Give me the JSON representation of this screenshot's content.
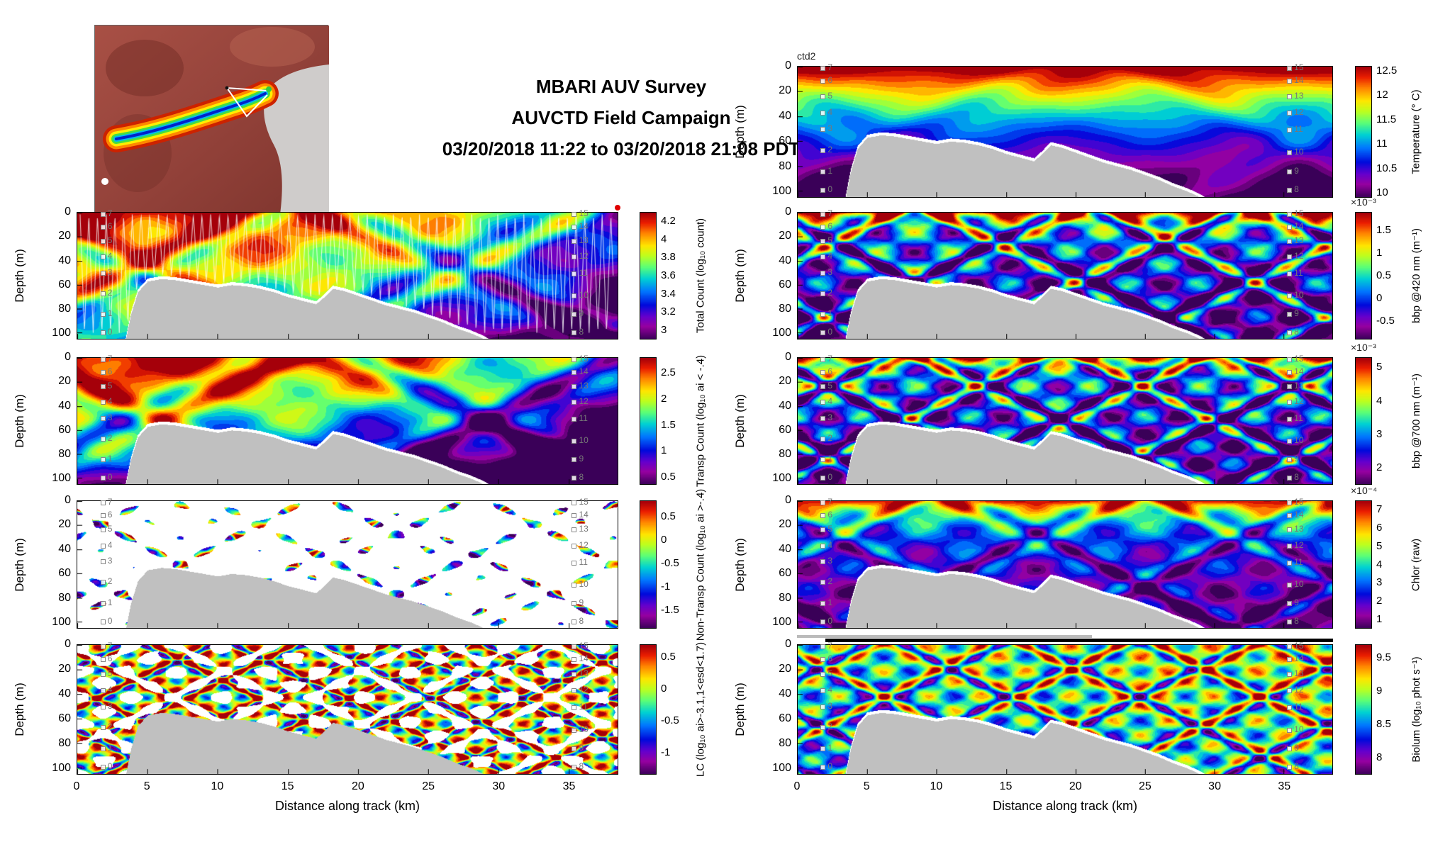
{
  "figure_title": {
    "line1": "MBARI AUV Survey",
    "line2": "AUVCTD Field Campaign",
    "line3": "03/20/2018 11:22 to 03/20/2018 21:08 PDT"
  },
  "map_inset": {
    "description": "Monterey Bay bathymetry overview map with AUV track and start marker"
  },
  "axes": {
    "xlabel": "Distance along track (km)",
    "ylabel": "Depth (m)",
    "xticks": [
      0,
      5,
      10,
      15,
      20,
      25,
      30,
      35
    ],
    "yticks": [
      0,
      20,
      40,
      60,
      80,
      100
    ],
    "x_range_km": [
      0,
      38.5
    ],
    "depth_range_m": [
      0,
      105
    ]
  },
  "annotations": {
    "ctd_label": "ctd2"
  },
  "waypoints": {
    "left_x_km": 1.8,
    "right_x_km": 35.3,
    "left": [
      {
        "label": "7",
        "depth_m": 1.5
      },
      {
        "label": "6",
        "depth_m": 12
      },
      {
        "label": "5",
        "depth_m": 24
      },
      {
        "label": "4",
        "depth_m": 37
      },
      {
        "label": "3",
        "depth_m": 50
      },
      {
        "label": "2",
        "depth_m": 67
      },
      {
        "label": "1",
        "depth_m": 84
      },
      {
        "label": "0",
        "depth_m": 99
      }
    ],
    "right": [
      {
        "label": "15",
        "depth_m": 1.5
      },
      {
        "label": "14",
        "depth_m": 12
      },
      {
        "label": "13",
        "depth_m": 24
      },
      {
        "label": "12",
        "depth_m": 37
      },
      {
        "label": "11",
        "depth_m": 51
      },
      {
        "label": "10",
        "depth_m": 69
      },
      {
        "label": "9",
        "depth_m": 84
      },
      {
        "label": "8",
        "depth_m": 99
      }
    ]
  },
  "chart_data": {
    "type": "heatmap",
    "title": "MBARI AUV Survey — AUVCTD Field Campaign section plots, 03/20/2018 11:22 to 03/20/2018 21:08 PDT",
    "x_axis": {
      "label": "Distance along track (km)",
      "range": [
        0,
        38.5
      ],
      "ticks": [
        0,
        5,
        10,
        15,
        20,
        25,
        30,
        35
      ]
    },
    "y_axis": {
      "label": "Depth (m)",
      "range": [
        0,
        105
      ],
      "ticks": [
        0,
        20,
        40,
        60,
        80,
        100
      ],
      "direction": "down"
    },
    "colormap_stops": [
      [
        0.0,
        [
          58,
          0,
          88
        ]
      ],
      [
        0.1,
        [
          150,
          0,
          160
        ]
      ],
      [
        0.18,
        [
          100,
          0,
          205
        ]
      ],
      [
        0.27,
        [
          0,
          10,
          220
        ]
      ],
      [
        0.38,
        [
          0,
          120,
          255
        ]
      ],
      [
        0.48,
        [
          0,
          210,
          210
        ]
      ],
      [
        0.57,
        [
          90,
          255,
          120
        ]
      ],
      [
        0.66,
        [
          190,
          255,
          30
        ]
      ],
      [
        0.74,
        [
          255,
          230,
          0
        ]
      ],
      [
        0.84,
        [
          255,
          130,
          0
        ]
      ],
      [
        0.92,
        [
          235,
          30,
          0
        ]
      ],
      [
        1.0,
        [
          165,
          0,
          10
        ]
      ]
    ],
    "bathymetry_profile": {
      "x_km": [
        0,
        3.0,
        3.4,
        3.8,
        4.3,
        5,
        6,
        7,
        8,
        9,
        10,
        11,
        12,
        13,
        14,
        15,
        16,
        17,
        17.6,
        18.2,
        19,
        20,
        21,
        22,
        23,
        24,
        25,
        26,
        27,
        28,
        28.8,
        29.6,
        31,
        38.5
      ],
      "seafloor_depth_m": [
        140,
        130,
        108,
        85,
        66,
        57,
        55,
        56,
        58,
        60,
        62,
        60,
        61,
        63,
        66,
        70,
        73,
        76,
        70,
        63,
        65,
        69,
        73,
        77,
        80,
        83,
        87,
        91,
        96,
        100,
        104,
        109,
        125,
        150
      ]
    },
    "panels": [
      {
        "id": "temperature",
        "column": "right",
        "row": 0,
        "colorbar_label": "Temperature (° C)",
        "colorbar_ticks": [
          10,
          10.5,
          11,
          11.5,
          12,
          12.5
        ],
        "value_range": [
          9.9,
          12.6
        ],
        "exponent": null,
        "annotation": "ctd2",
        "render": {
          "pattern": "field",
          "a0": 1.06,
          "au": 0,
          "au2": 0,
          "av": -1.9,
          "av2": 0.85,
          "band": 0,
          "band_m": 10,
          "an": 0.1,
          "nf": 2.4,
          "seed": 5
        }
      },
      {
        "id": "bbp420",
        "column": "right",
        "row": 1,
        "colorbar_label": "bbp @420 nm (m⁻¹)",
        "colorbar_ticks": [
          -0.5,
          0,
          0.5,
          1,
          1.5
        ],
        "value_range": [
          -0.9,
          1.9
        ],
        "exponent": "×10⁻³",
        "annotation": null,
        "render": {
          "pattern": "field",
          "a0": 0.42,
          "au": 0,
          "au2": 0,
          "av": -0.35,
          "av2": 0,
          "band": 0.55,
          "band_m": 7,
          "an": 0.5,
          "nf": 6,
          "seed": 6
        }
      },
      {
        "id": "bbp700",
        "column": "right",
        "row": 2,
        "colorbar_label": "bbp @700 nm (m⁻¹)",
        "colorbar_ticks": [
          2,
          3,
          4,
          5
        ],
        "value_range": [
          1.5,
          5.3
        ],
        "exponent": "×10⁻³",
        "annotation": null,
        "render": {
          "pattern": "field",
          "a0": 0.4,
          "au": 0,
          "au2": 0,
          "av": -0.3,
          "av2": 0,
          "band": 0.5,
          "band_m": 6,
          "an": 0.5,
          "nf": 6.5,
          "seed": 7
        }
      },
      {
        "id": "chlor",
        "column": "right",
        "row": 3,
        "colorbar_label": "Chlor (raw)",
        "colorbar_ticks": [
          1,
          2,
          3,
          4,
          5,
          6,
          7
        ],
        "value_range": [
          0.5,
          7.5
        ],
        "exponent": "×10⁻⁴",
        "annotation": null,
        "render": {
          "pattern": "field",
          "a0": 0.34,
          "au": 0,
          "au2": 0,
          "av": -0.3,
          "av2": 0,
          "band": 0.62,
          "band_m": 14,
          "an": 0.26,
          "nf": 5,
          "seed": 8
        }
      },
      {
        "id": "biolum",
        "column": "right",
        "row": 4,
        "colorbar_label": "Biolum (log₁₀ phot s⁻¹)",
        "colorbar_ticks": [
          8,
          8.5,
          9,
          9.5
        ],
        "value_range": [
          7.75,
          9.7
        ],
        "exponent": null,
        "annotation": null,
        "render": {
          "pattern": "field",
          "a0": 0.55,
          "au": 0.15,
          "au2": 0,
          "av": -0.2,
          "av2": 0,
          "band": 0,
          "band_m": 10,
          "an": 0.45,
          "nf": 8,
          "seed": 9,
          "topbar": true
        }
      },
      {
        "id": "total-count",
        "column": "left",
        "row": 1,
        "colorbar_label": "Total Count (log₁₀ count)",
        "colorbar_ticks": [
          3,
          3.2,
          3.4,
          3.6,
          3.8,
          4,
          4.2
        ],
        "value_range": [
          2.9,
          4.3
        ],
        "exponent": null,
        "annotation": null,
        "render": {
          "pattern": "field",
          "a0": 1.0,
          "au": 0.1,
          "au2": -0.75,
          "av": -0.55,
          "av2": 0,
          "band": 0,
          "band_m": 10,
          "an": 0.28,
          "nf": 3.2,
          "seed": 1,
          "track": true,
          "enddot": true
        }
      },
      {
        "id": "transp-count",
        "column": "left",
        "row": 2,
        "colorbar_label": "Transp Count (log₁₀ ai < -.4)",
        "colorbar_ticks": [
          0.5,
          1,
          1.5,
          2,
          2.5
        ],
        "value_range": [
          0.35,
          2.8
        ],
        "exponent": null,
        "annotation": null,
        "render": {
          "pattern": "field",
          "a0": 1.05,
          "au": 0.05,
          "au2": -0.75,
          "av": -0.9,
          "av2": 0,
          "band": 0,
          "band_m": 10,
          "an": 0.3,
          "nf": 3.0,
          "seed": 2
        }
      },
      {
        "id": "non-transp-count",
        "column": "left",
        "row": 3,
        "colorbar_label": "Non-Transp Count (log₁₀ ai >-.4)",
        "colorbar_ticks": [
          -1.5,
          -1,
          -0.5,
          0,
          0.5
        ],
        "value_range": [
          -1.9,
          0.85
        ],
        "exponent": null,
        "annotation": null,
        "render": {
          "pattern": "sparse",
          "thr": 0.62,
          "bias": 0,
          "nf": 7,
          "seed": 3
        }
      },
      {
        "id": "lc",
        "column": "left",
        "row": 4,
        "colorbar_label": "LC (log₁₀ ai>-3.1,1<esd<1.7)",
        "colorbar_ticks": [
          -1,
          -0.5,
          0,
          0.5
        ],
        "value_range": [
          -1.35,
          0.7
        ],
        "exponent": null,
        "annotation": null,
        "render": {
          "pattern": "sparse",
          "thr": -0.18,
          "bias": 0.18,
          "nf": 8,
          "seed": 4
        }
      }
    ]
  }
}
